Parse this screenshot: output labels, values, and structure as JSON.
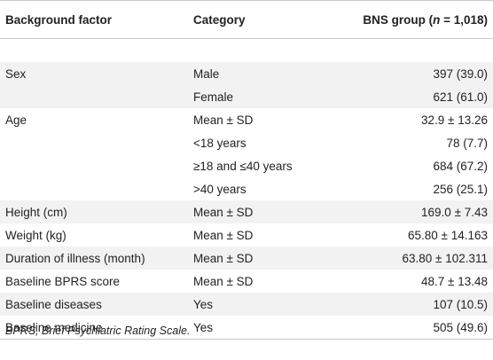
{
  "table": {
    "headers": {
      "col1": "Background factor",
      "col2": "Category",
      "col3_prefix": "BNS group (",
      "col3_n": "n",
      "col3_suffix": " = 1,018)"
    },
    "rows": [
      {
        "factor": "",
        "category": "",
        "value": ""
      },
      {
        "factor": "Sex",
        "category": "Male",
        "value": "397 (39.0)"
      },
      {
        "factor": "",
        "category": "Female",
        "value": "621 (61.0)"
      },
      {
        "factor": "Age",
        "category": "Mean ± SD",
        "value": "32.9 ± 13.26"
      },
      {
        "factor": "",
        "category": "<18 years",
        "value": "78 (7.7)"
      },
      {
        "factor": "",
        "category": "≥18 and ≤40 years",
        "value": "684 (67.2)"
      },
      {
        "factor": "",
        "category": ">40 years",
        "value": "256 (25.1)"
      },
      {
        "factor": "Height (cm)",
        "category": "Mean ± SD",
        "value": "169.0 ± 7.43"
      },
      {
        "factor": "Weight (kg)",
        "category": "Mean ± SD",
        "value": "65.80 ± 14.163"
      },
      {
        "factor": "Duration of illness (month)",
        "category": "Mean ± SD",
        "value": "63.80 ± 102.311"
      },
      {
        "factor": "Baseline BPRS score",
        "category": "Mean ± SD",
        "value": "48.7 ± 13.48"
      },
      {
        "factor": "Baseline diseases",
        "category": "Yes",
        "value": "107 (10.5)"
      },
      {
        "factor": "Baseline medicine",
        "category": "Yes",
        "value": "505 (49.6)"
      }
    ]
  },
  "footnote": "BPRS, Brief Psychiatric Rating Scale."
}
